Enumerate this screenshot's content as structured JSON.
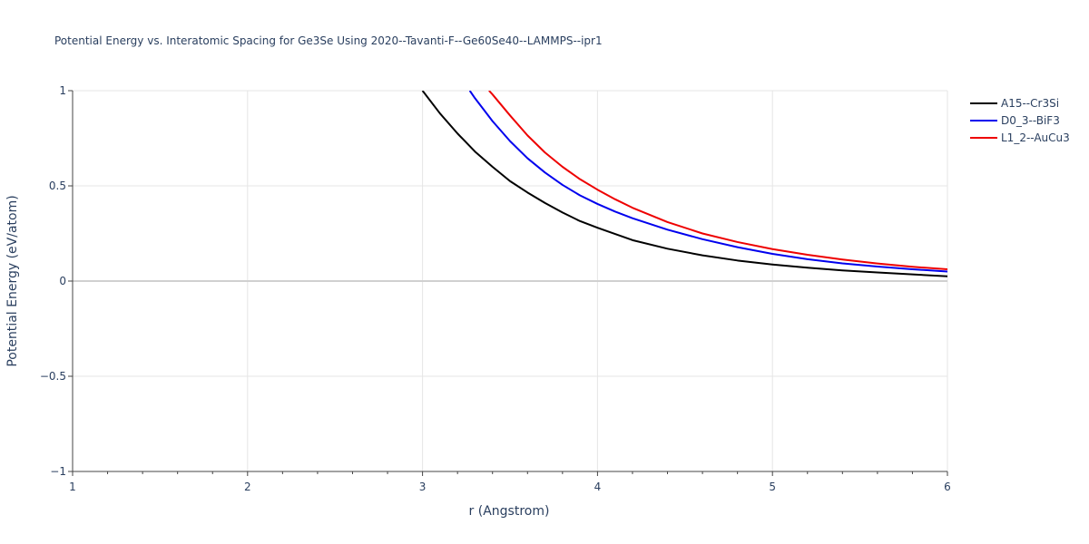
{
  "chart_data": {
    "type": "line",
    "title": "Potential Energy vs. Interatomic Spacing for Ge3Se Using 2020--Tavanti-F--Ge60Se40--LAMMPS--ipr1",
    "xlabel": "r (Angstrom)",
    "ylabel": "Potential Energy (eV/atom)",
    "xlim": [
      1,
      6
    ],
    "ylim": [
      -1,
      1
    ],
    "x_ticks": [
      1,
      2,
      3,
      4,
      5,
      6
    ],
    "y_ticks": [
      -1,
      -0.5,
      0,
      0.5,
      1
    ],
    "x_tick_labels": [
      "1",
      "2",
      "3",
      "4",
      "5",
      "6"
    ],
    "y_tick_labels": [
      "−1",
      "−0.5",
      "0",
      "0.5",
      "1"
    ],
    "grid": true,
    "legend_position": "top-right",
    "series": [
      {
        "name": "A15--Cr3Si",
        "color": "#000000",
        "x": [
          3.0,
          3.1,
          3.2,
          3.3,
          3.4,
          3.5,
          3.6,
          3.7,
          3.8,
          3.9,
          4.0,
          4.2,
          4.4,
          4.6,
          4.8,
          5.0,
          5.2,
          5.4,
          5.6,
          5.8,
          6.0
        ],
        "y": [
          1.0,
          0.88,
          0.775,
          0.68,
          0.6,
          0.525,
          0.465,
          0.41,
          0.36,
          0.315,
          0.28,
          0.215,
          0.17,
          0.135,
          0.108,
          0.087,
          0.07,
          0.056,
          0.045,
          0.035,
          0.025
        ]
      },
      {
        "name": "D0_3--BiF3",
        "color": "#0000ee",
        "x": [
          3.27,
          3.3,
          3.4,
          3.5,
          3.6,
          3.7,
          3.8,
          3.9,
          4.0,
          4.1,
          4.2,
          4.4,
          4.6,
          4.8,
          5.0,
          5.2,
          5.4,
          5.6,
          5.8,
          6.0
        ],
        "y": [
          1.0,
          0.96,
          0.84,
          0.735,
          0.645,
          0.57,
          0.505,
          0.45,
          0.405,
          0.365,
          0.33,
          0.27,
          0.22,
          0.178,
          0.143,
          0.115,
          0.093,
          0.076,
          0.062,
          0.05
        ]
      },
      {
        "name": "L1_2--AuCu3",
        "color": "#ee0000",
        "x": [
          3.38,
          3.4,
          3.5,
          3.6,
          3.7,
          3.8,
          3.9,
          4.0,
          4.1,
          4.2,
          4.4,
          4.6,
          4.8,
          5.0,
          5.2,
          5.4,
          5.6,
          5.8,
          6.0
        ],
        "y": [
          1.0,
          0.98,
          0.87,
          0.765,
          0.675,
          0.6,
          0.535,
          0.48,
          0.43,
          0.385,
          0.31,
          0.25,
          0.205,
          0.168,
          0.138,
          0.113,
          0.092,
          0.075,
          0.062
        ]
      }
    ]
  }
}
